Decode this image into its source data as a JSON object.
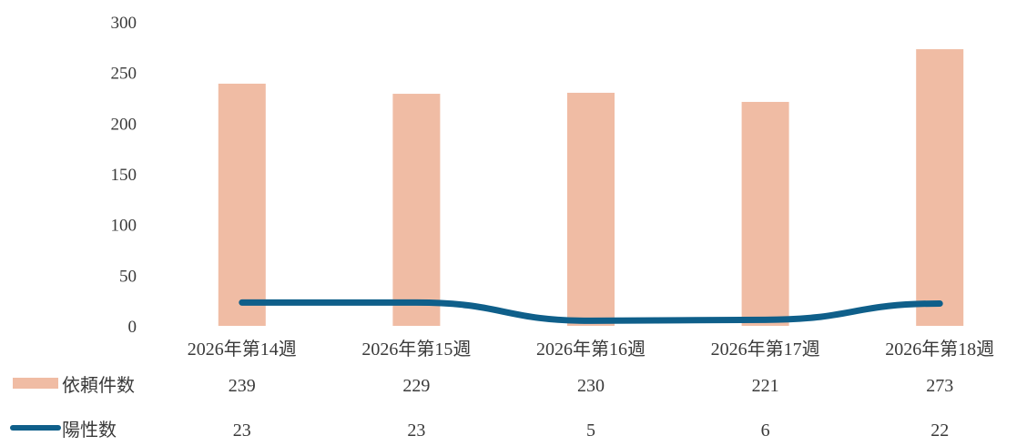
{
  "chart_data": {
    "type": "bar",
    "categories": [
      "2026年第14週",
      "2026年第15週",
      "2026年第16週",
      "2026年第17週",
      "2026年第18週"
    ],
    "series": [
      {
        "name": "依頼件数",
        "type": "bar",
        "values": [
          239,
          229,
          230,
          221,
          273
        ],
        "color": "#f0bca4"
      },
      {
        "name": "陽性数",
        "type": "line",
        "values": [
          23,
          23,
          5,
          6,
          22
        ],
        "color": "#0f5f8a"
      }
    ],
    "yticks": [
      "0",
      "50",
      "100",
      "150",
      "200",
      "250",
      "300"
    ],
    "ylim": [
      0,
      300
    ],
    "grid": false,
    "legend": "bottom data table"
  }
}
